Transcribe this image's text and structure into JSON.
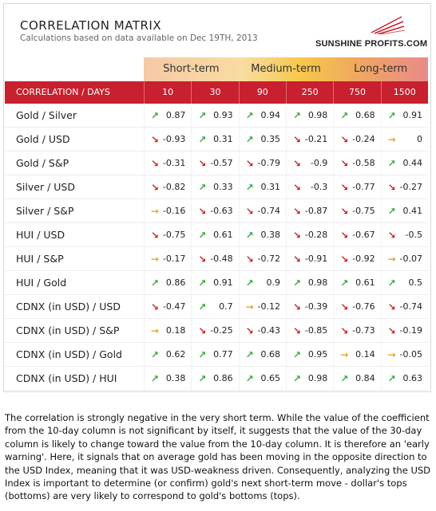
{
  "header": {
    "title": "CORRELATION MATRIX",
    "subtitle": "Calculations based on data available on Dec 19TH, 2013",
    "logo": "SUNSHINE PROFITS.COM"
  },
  "periods": [
    "Short-term",
    "Medium-term",
    "Long-term"
  ],
  "table": {
    "label_header": "CORRELATION / DAYS",
    "columns": [
      "10",
      "30",
      "90",
      "250",
      "750",
      "1500"
    ],
    "rows": [
      {
        "label": "Gold / Silver",
        "cells": [
          {
            "v": "0.87",
            "d": "up"
          },
          {
            "v": "0.93",
            "d": "up"
          },
          {
            "v": "0.94",
            "d": "up"
          },
          {
            "v": "0.98",
            "d": "up"
          },
          {
            "v": "0.68",
            "d": "up"
          },
          {
            "v": "0.91",
            "d": "up"
          }
        ]
      },
      {
        "label": "Gold / USD",
        "cells": [
          {
            "v": "-0.93",
            "d": "down"
          },
          {
            "v": "0.31",
            "d": "up"
          },
          {
            "v": "0.35",
            "d": "up"
          },
          {
            "v": "-0.21",
            "d": "down"
          },
          {
            "v": "-0.24",
            "d": "down"
          },
          {
            "v": "0",
            "d": "flat"
          }
        ]
      },
      {
        "label": "Gold / S&P",
        "cells": [
          {
            "v": "-0.31",
            "d": "down"
          },
          {
            "v": "-0.57",
            "d": "down"
          },
          {
            "v": "-0.79",
            "d": "down"
          },
          {
            "v": "-0.9",
            "d": "down"
          },
          {
            "v": "-0.58",
            "d": "down"
          },
          {
            "v": "0.44",
            "d": "up"
          }
        ]
      },
      {
        "label": "Silver / USD",
        "cells": [
          {
            "v": "-0.82",
            "d": "down"
          },
          {
            "v": "0.33",
            "d": "up"
          },
          {
            "v": "0.31",
            "d": "up"
          },
          {
            "v": "-0.3",
            "d": "down"
          },
          {
            "v": "-0.77",
            "d": "down"
          },
          {
            "v": "-0.27",
            "d": "down"
          }
        ]
      },
      {
        "label": "Silver / S&P",
        "cells": [
          {
            "v": "-0.16",
            "d": "flat"
          },
          {
            "v": "-0.63",
            "d": "down"
          },
          {
            "v": "-0.74",
            "d": "down"
          },
          {
            "v": "-0.87",
            "d": "down"
          },
          {
            "v": "-0.75",
            "d": "down"
          },
          {
            "v": "0.41",
            "d": "up"
          }
        ]
      },
      {
        "label": "HUI / USD",
        "cells": [
          {
            "v": "-0.75",
            "d": "down"
          },
          {
            "v": "0.61",
            "d": "up"
          },
          {
            "v": "0.38",
            "d": "up"
          },
          {
            "v": "-0.28",
            "d": "down"
          },
          {
            "v": "-0.67",
            "d": "down"
          },
          {
            "v": "-0.5",
            "d": "down"
          }
        ]
      },
      {
        "label": "HUI / S&P",
        "cells": [
          {
            "v": "-0.17",
            "d": "flat"
          },
          {
            "v": "-0.48",
            "d": "down"
          },
          {
            "v": "-0.72",
            "d": "down"
          },
          {
            "v": "-0.91",
            "d": "down"
          },
          {
            "v": "-0.92",
            "d": "down"
          },
          {
            "v": "-0.07",
            "d": "flat"
          }
        ]
      },
      {
        "label": "HUI / Gold",
        "cells": [
          {
            "v": "0.86",
            "d": "up"
          },
          {
            "v": "0.91",
            "d": "up"
          },
          {
            "v": "0.9",
            "d": "up"
          },
          {
            "v": "0.98",
            "d": "up"
          },
          {
            "v": "0.61",
            "d": "up"
          },
          {
            "v": "0.5",
            "d": "up"
          }
        ]
      },
      {
        "label": "CDNX (in USD) / USD",
        "cells": [
          {
            "v": "-0.47",
            "d": "down"
          },
          {
            "v": "0.7",
            "d": "up"
          },
          {
            "v": "-0.12",
            "d": "flat"
          },
          {
            "v": "-0.39",
            "d": "down"
          },
          {
            "v": "-0.76",
            "d": "down"
          },
          {
            "v": "-0.74",
            "d": "down"
          }
        ]
      },
      {
        "label": "CDNX (in USD) / S&P",
        "cells": [
          {
            "v": "0.18",
            "d": "flat"
          },
          {
            "v": "-0.25",
            "d": "down"
          },
          {
            "v": "-0.43",
            "d": "down"
          },
          {
            "v": "-0.85",
            "d": "down"
          },
          {
            "v": "-0.73",
            "d": "down"
          },
          {
            "v": "-0.19",
            "d": "down"
          }
        ]
      },
      {
        "label": "CDNX (in USD) / Gold",
        "cells": [
          {
            "v": "0.62",
            "d": "up"
          },
          {
            "v": "0.77",
            "d": "up"
          },
          {
            "v": "0.68",
            "d": "up"
          },
          {
            "v": "0.95",
            "d": "up"
          },
          {
            "v": "0.14",
            "d": "flat"
          },
          {
            "v": "-0.05",
            "d": "flat"
          }
        ]
      },
      {
        "label": "CDNX (in USD) / HUI",
        "cells": [
          {
            "v": "0.38",
            "d": "up"
          },
          {
            "v": "0.86",
            "d": "up"
          },
          {
            "v": "0.65",
            "d": "up"
          },
          {
            "v": "0.98",
            "d": "up"
          },
          {
            "v": "0.84",
            "d": "up"
          },
          {
            "v": "0.63",
            "d": "up"
          }
        ]
      }
    ]
  },
  "icons": {
    "up": "arrow-up-right-icon",
    "down": "arrow-down-right-icon",
    "flat": "arrow-right-icon"
  },
  "colors": {
    "header_red": "#c8202e",
    "up": "#3ea83e",
    "down": "#c8202e",
    "flat": "#f0a020"
  },
  "commentary": "The correlation is strongly negative in the very short term. While the value of the coefficient from the 10-day column is not significant by itself, it suggests that the value of the 30-day column is likely to change toward the value from the 10-day column. It is therefore an 'early warning'. Here, it signals that on average gold has been moving in the opposite direction to the USD Index, meaning that it was USD-weakness driven. Consequently, analyzing the USD Index is important to determine (or confirm) gold's next short-term move - dollar's tops (bottoms) are very likely to correspond to gold's bottoms (tops)."
}
